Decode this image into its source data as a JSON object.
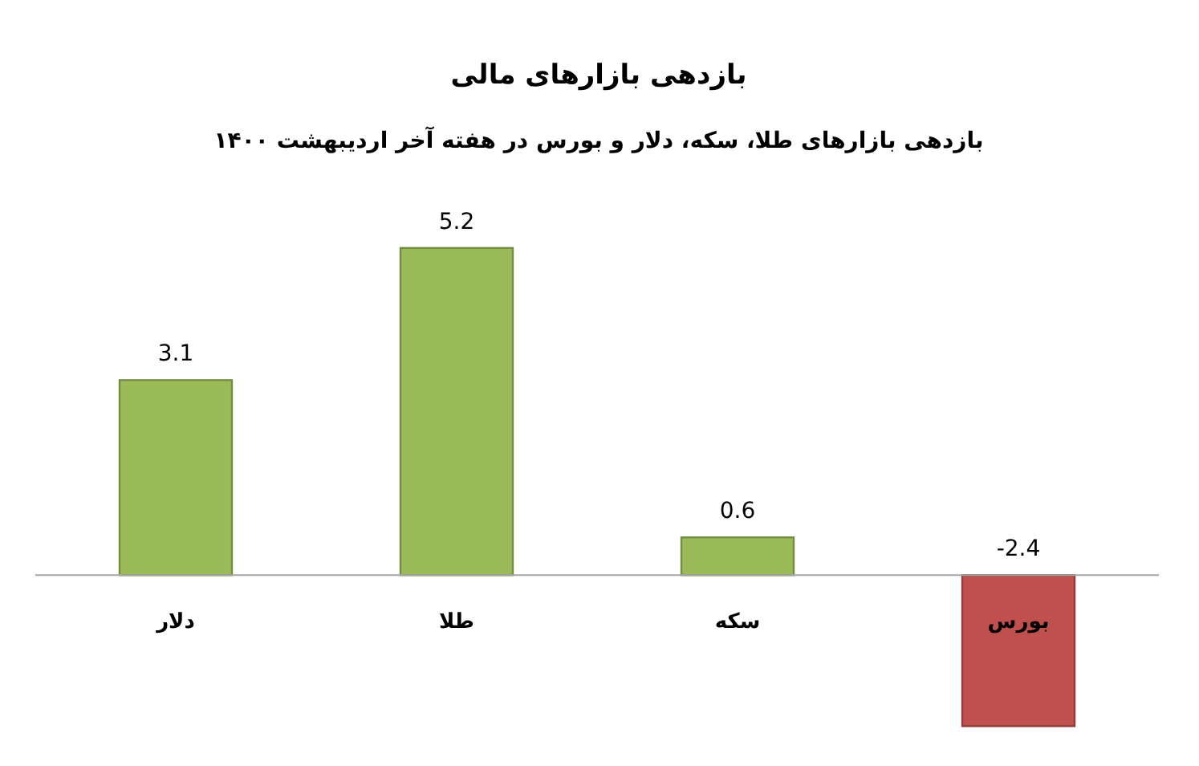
{
  "chart_data": {
    "type": "bar",
    "title": "بازدهی بازارهای مالی",
    "subtitle": "بازدهی بازارهای طلا، سکه، دلار و بورس در هفته آخر اردیبهشت ۱۴۰۰",
    "categories": [
      "دلار",
      "طلا",
      "سکه",
      "بورس"
    ],
    "values": [
      3.1,
      5.2,
      0.6,
      -2.4
    ],
    "colors": [
      "#9bbb59",
      "#9bbb59",
      "#9bbb59",
      "#c0504d"
    ],
    "data_labels": true
  }
}
